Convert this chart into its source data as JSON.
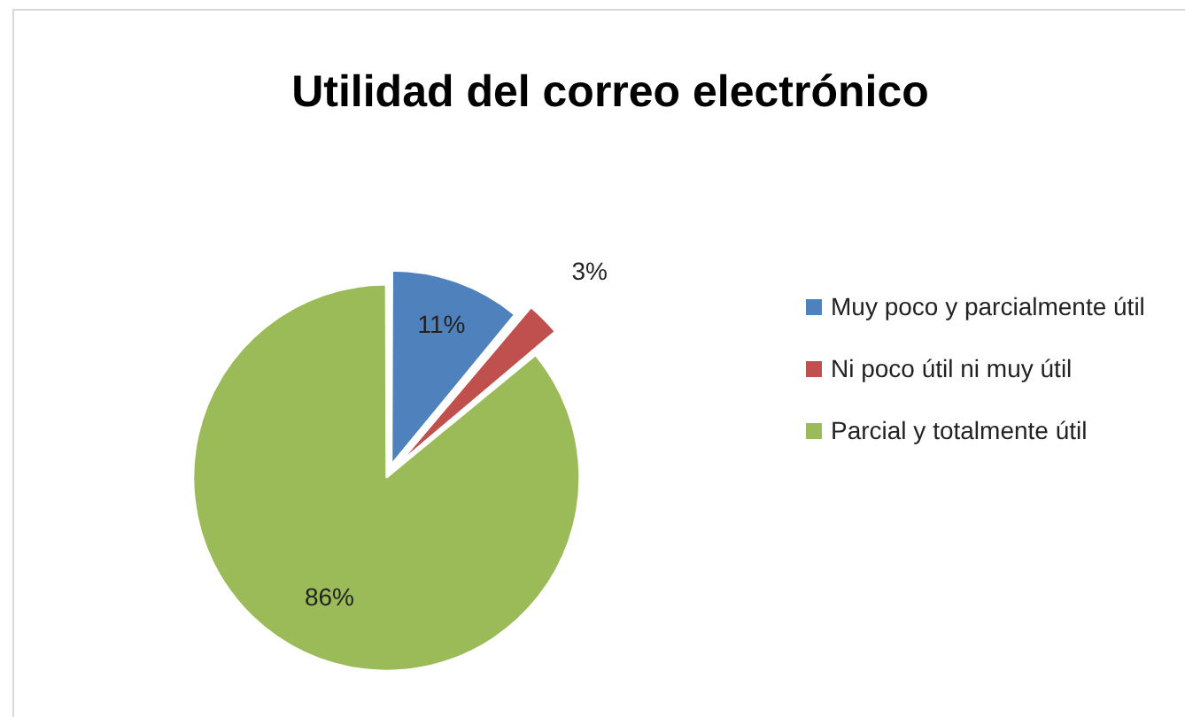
{
  "chart_data": {
    "type": "pie",
    "title": "Utilidad del correo electrónico",
    "categories": [
      "Muy poco y parcialmente útil",
      "Ni poco útil ni muy útil",
      "Parcial y totalmente útil"
    ],
    "values": [
      11,
      3,
      86
    ],
    "colors": [
      "#4f81bd",
      "#c0504d",
      "#9bbb59"
    ],
    "value_labels": [
      "11%",
      "3%",
      "86%"
    ],
    "legend": "right"
  }
}
